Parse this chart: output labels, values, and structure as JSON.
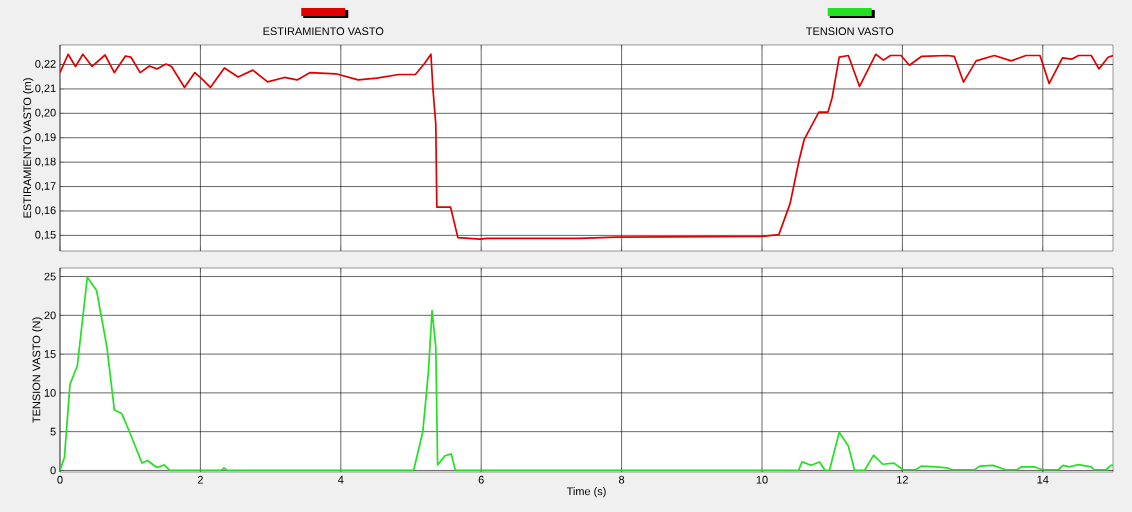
{
  "chart_data": [
    {
      "type": "line",
      "ylabel": "ESTIRAMIENTO VASTO (m)",
      "xlim": [
        0,
        15
      ],
      "ylim": [
        0.1436,
        0.228
      ],
      "xticks": [
        0,
        2,
        4,
        6,
        8,
        10,
        12,
        14
      ],
      "yticks": [
        {
          "value": 0.15,
          "label": "0,15"
        },
        {
          "value": 0.16,
          "label": "0,16"
        },
        {
          "value": 0.17,
          "label": "0,17"
        },
        {
          "value": 0.18,
          "label": "0,18"
        },
        {
          "value": 0.19,
          "label": "0,19"
        },
        {
          "value": 0.2,
          "label": "0,20"
        },
        {
          "value": 0.21,
          "label": "0,21"
        },
        {
          "value": 0.22,
          "label": "0,22"
        }
      ],
      "tick_labels": "y",
      "grid": true,
      "legend": "top",
      "marker": "none",
      "line_style": "solid",
      "series": [
        {
          "name": "ESTIRAMIENTO VASTO",
          "color": "#e00000",
          "x": [
            0,
            0.116,
            0.221,
            0.326,
            0.458,
            0.642,
            0.774,
            0.932,
            1.011,
            1.142,
            1.274,
            1.379,
            1.511,
            1.589,
            1.774,
            1.921,
            2.011,
            2.142,
            2.342,
            2.537,
            2.747,
            2.958,
            3.195,
            3.379,
            3.563,
            3.932,
            4.247,
            4.511,
            4.826,
            5.063,
            5.195,
            5.284,
            5.311,
            5.353,
            5.368,
            5.563,
            5.668,
            5.984,
            6.089,
            7.395,
            7.92,
            10.0,
            10.24,
            10.4,
            10.53,
            10.6,
            10.81,
            10.94,
            11.0,
            11.1,
            11.23,
            11.39,
            11.62,
            11.73,
            11.83,
            11.98,
            12.1,
            12.27,
            12.64,
            12.74,
            12.87,
            13.05,
            13.31,
            13.55,
            13.76,
            13.96,
            14.09,
            14.28,
            14.41,
            14.51,
            14.69,
            14.8,
            14.93,
            15.0
          ],
          "values": [
            0.2167,
            0.2242,
            0.2192,
            0.2242,
            0.2192,
            0.2239,
            0.2167,
            0.2235,
            0.223,
            0.2167,
            0.2194,
            0.2182,
            0.2202,
            0.2192,
            0.2106,
            0.2167,
            0.2144,
            0.2106,
            0.2186,
            0.2149,
            0.2177,
            0.2129,
            0.2147,
            0.2137,
            0.2167,
            0.2162,
            0.2137,
            0.2144,
            0.2159,
            0.2159,
            0.2205,
            0.2242,
            0.2106,
            0.1956,
            0.1616,
            0.1616,
            0.1491,
            0.1485,
            0.1488,
            0.1488,
            0.1493,
            0.1496,
            0.1503,
            0.163,
            0.181,
            0.1892,
            0.2005,
            0.2005,
            0.2065,
            0.223,
            0.2237,
            0.211,
            0.2242,
            0.2218,
            0.2237,
            0.2237,
            0.2197,
            0.2233,
            0.2237,
            0.2233,
            0.2128,
            0.2215,
            0.2237,
            0.2215,
            0.2237,
            0.2237,
            0.2122,
            0.2227,
            0.2222,
            0.2237,
            0.2237,
            0.2182,
            0.223,
            0.2237
          ]
        }
      ]
    },
    {
      "type": "line",
      "xlabel": "Time (s)",
      "ylabel": "TENSION VASTO (N)",
      "xlim": [
        0,
        15
      ],
      "ylim": [
        -0.2,
        26.1
      ],
      "xticks": [
        0,
        2,
        4,
        6,
        8,
        10,
        12,
        14
      ],
      "yticks": [
        0,
        5,
        10,
        15,
        20,
        25
      ],
      "grid": true,
      "legend": "top",
      "marker": "none",
      "line_style": "solid",
      "series": [
        {
          "name": "TENSION VASTO",
          "color": "#22e022",
          "x": [
            0,
            0.063,
            0.142,
            0.247,
            0.389,
            0.521,
            0.668,
            0.774,
            0.879,
            1.011,
            1.168,
            1.247,
            1.379,
            1.484,
            1.563,
            2.3,
            2.337,
            2.379,
            5.037,
            5.168,
            5.247,
            5.3,
            5.353,
            5.379,
            5.484,
            5.574,
            5.626,
            5.642,
            10.52,
            10.57,
            10.7,
            10.82,
            10.9,
            10.96,
            11.1,
            11.23,
            11.32,
            11.46,
            11.59,
            11.72,
            11.88,
            12.01,
            12.19,
            12.27,
            12.48,
            12.64,
            12.71,
            13.03,
            13.1,
            13.29,
            13.47,
            13.63,
            13.7,
            13.88,
            13.99,
            14.22,
            14.29,
            14.38,
            14.51,
            14.69,
            14.73,
            14.9,
            14.97,
            15.0
          ],
          "values": [
            0,
            1.66,
            11.1,
            13.5,
            24.9,
            23.2,
            15.9,
            7.8,
            7.35,
            4.5,
            0.95,
            1.28,
            0.38,
            0.71,
            0,
            0,
            0.33,
            0,
            0,
            4.98,
            12.57,
            20.6,
            15.9,
            0.71,
            1.9,
            2.13,
            0.24,
            0,
            0,
            1.1,
            0.66,
            1.1,
            0,
            0,
            4.93,
            3.15,
            0,
            0,
            1.97,
            0.8,
            0.94,
            0.09,
            0.09,
            0.56,
            0.47,
            0.33,
            0.09,
            0.09,
            0.56,
            0.66,
            0.09,
            0.09,
            0.47,
            0.47,
            0.09,
            0.09,
            0.66,
            0.47,
            0.75,
            0.47,
            0.09,
            0.09,
            0.66,
            0.66
          ]
        }
      ]
    }
  ]
}
